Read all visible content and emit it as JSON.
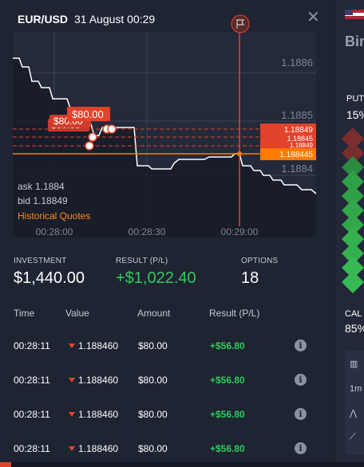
{
  "header": {
    "pair": "EUR/USD",
    "datetime": "31 August 00:29",
    "close_icon": "close-icon"
  },
  "chart_data": {
    "type": "line",
    "x_ticks": [
      "00:28:00",
      "00:28:30",
      "00:29:00"
    ],
    "y_ticks": [
      "1.1886",
      "1.1885",
      "1.1884"
    ],
    "price_labels": [
      "1.18849",
      "1.18845",
      "1.18849",
      "1.188445"
    ],
    "trade_tags": [
      "$80.00",
      "$80.00",
      "$80.00"
    ],
    "ask": "ask 1.1884",
    "bid": "bid 1.18849",
    "link": "Historical Quotes",
    "colors": {
      "line": "#ffffff",
      "put": "#e1432b",
      "current": "#ff7a00"
    }
  },
  "stats": {
    "investment_label": "INVESTMENT",
    "investment": "$1,440.00",
    "result_label": "RESULT (P/L)",
    "result": "+$1,022.40",
    "options_label": "OPTIONS",
    "options": "18"
  },
  "table": {
    "headers": [
      "Time",
      "Value",
      "Amount",
      "Result (P/L)"
    ],
    "rows": [
      {
        "time": "00:28:11",
        "value": "1.188460",
        "amount": "$80.00",
        "result": "+$56.80"
      },
      {
        "time": "00:28:11",
        "value": "1.188460",
        "amount": "$80.00",
        "result": "+$56.80"
      },
      {
        "time": "00:28:11",
        "value": "1.188460",
        "amount": "$80.00",
        "result": "+$56.80"
      },
      {
        "time": "00:28:11",
        "value": "1.188460",
        "amount": "$80.00",
        "result": "+$56.80"
      }
    ]
  },
  "side": {
    "title": "Bin",
    "put": "PUT",
    "put_pct": "15%",
    "call": "CAL",
    "call_pct": "85%",
    "tool_label": "1m"
  }
}
